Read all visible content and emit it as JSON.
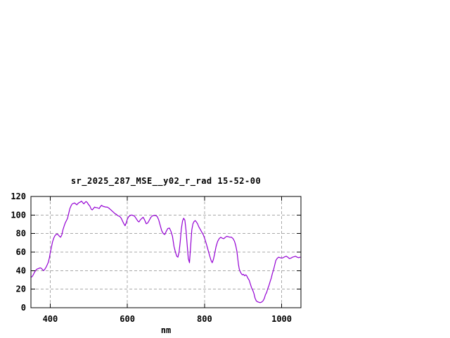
{
  "figure": {
    "background": "#ffffff"
  },
  "chart_data": {
    "type": "line",
    "title": "sr_2025_287_MSE__y02_r_rad 15-52-00",
    "xlabel": "nm",
    "ylabel": "",
    "xlim": [
      350,
      1050
    ],
    "ylim": [
      0,
      120
    ],
    "xtick_values": [
      400,
      600,
      800,
      1000
    ],
    "xtick_labels": [
      "400",
      "600",
      "800",
      "1000"
    ],
    "ytick_values": [
      0,
      20,
      40,
      60,
      80,
      100,
      120
    ],
    "ytick_labels": [
      "0",
      "20",
      "40",
      "60",
      "80",
      "100",
      "120"
    ],
    "grid": true,
    "legend_position": "none",
    "line_color": "#9400d3",
    "grid_color": "#a8a8a8",
    "axis_color": "#000000",
    "series": [
      {
        "name": "sr_2025_287_MSE__y02_r_rad 15-52-00",
        "x": [
          350,
          353,
          356,
          359,
          362,
          365,
          368,
          371,
          374,
          377,
          380,
          383,
          386,
          389,
          392,
          395,
          398,
          400,
          403,
          406,
          409,
          412,
          415,
          418,
          421,
          424,
          427,
          430,
          433,
          436,
          439,
          442,
          445,
          448,
          451,
          454,
          457,
          460,
          463,
          466,
          469,
          472,
          475,
          478,
          481,
          484,
          487,
          490,
          493,
          496,
          499,
          503,
          506,
          509,
          512,
          515,
          518,
          521,
          524,
          527,
          530,
          533,
          536,
          540,
          544,
          548,
          552,
          556,
          560,
          564,
          568,
          572,
          576,
          580,
          584,
          588,
          591,
          594,
          597,
          600,
          603,
          607,
          611,
          615,
          619,
          623,
          627,
          630,
          634,
          638,
          641,
          645,
          649,
          653,
          657,
          661,
          665,
          669,
          673,
          677,
          681,
          685,
          689,
          693,
          697,
          701,
          705,
          709,
          713,
          717,
          721,
          725,
          728,
          731,
          734,
          737,
          740,
          743,
          746,
          749,
          752,
          755,
          758,
          761,
          764,
          767,
          770,
          773,
          776,
          779,
          782,
          785,
          789,
          793,
          797,
          801,
          805,
          809,
          813,
          817,
          820,
          823,
          826,
          830,
          834,
          838,
          842,
          846,
          850,
          854,
          858,
          862,
          866,
          870,
          874,
          878,
          881,
          884,
          886,
          888,
          890,
          892,
          895,
          898,
          901,
          904,
          907,
          910,
          913,
          916,
          919,
          922,
          925,
          928,
          931,
          934,
          937,
          940,
          944,
          948,
          952,
          955,
          958,
          961,
          964,
          967,
          970,
          973,
          976,
          979,
          982,
          985,
          988,
          992,
          996,
          1000,
          1004,
          1008,
          1012,
          1016,
          1020,
          1024,
          1028,
          1032,
          1036,
          1040,
          1044,
          1048
        ],
        "y": [
          33,
          33.5,
          35.5,
          38,
          40,
          41.5,
          42,
          42.5,
          43,
          42.5,
          41,
          40,
          41.5,
          43.5,
          46,
          49,
          54,
          59,
          65,
          71,
          75,
          77.5,
          79,
          79.5,
          78.5,
          77,
          76,
          78.5,
          84,
          88,
          91.5,
          94,
          96.5,
          102,
          107,
          110,
          112,
          112.5,
          113,
          112,
          111,
          112.5,
          113.5,
          114,
          115,
          113.5,
          112,
          113.5,
          114.5,
          113.5,
          111.5,
          109.5,
          106.5,
          105.5,
          107,
          108.5,
          108,
          108,
          107.5,
          107,
          109,
          110.5,
          109.5,
          109,
          108.5,
          108.5,
          107.5,
          106,
          104.5,
          103,
          101.5,
          100.5,
          99,
          98.5,
          96.5,
          93,
          90.5,
          88.5,
          91.5,
          95.5,
          98,
          99.5,
          100,
          99.5,
          98.5,
          96,
          93.5,
          92.5,
          95,
          96.5,
          97.5,
          94.5,
          90.5,
          91.5,
          94.5,
          97.5,
          99,
          99.5,
          99.5,
          98.5,
          95,
          89,
          83,
          80,
          79,
          82.5,
          85.5,
          86,
          82.5,
          77,
          66,
          59.5,
          55.5,
          54.5,
          60,
          71,
          85,
          93.5,
          96.5,
          94.5,
          84,
          68,
          53,
          48.5,
          66,
          84,
          90.5,
          93,
          94,
          92.5,
          90.5,
          87.5,
          84.5,
          81.5,
          78.5,
          74,
          68.5,
          62.5,
          56.5,
          51,
          48.5,
          52,
          57.5,
          66,
          71.5,
          74.5,
          76,
          75,
          74.5,
          76,
          77,
          76.5,
          76,
          76,
          74.5,
          71.5,
          67,
          61,
          54,
          47,
          42,
          39.5,
          37,
          35.5,
          36,
          34.5,
          35.5,
          34,
          31.5,
          29.5,
          25.5,
          21.5,
          19,
          15.5,
          10.5,
          7.5,
          6.5,
          6,
          5.5,
          6,
          7.5,
          10,
          14,
          16.5,
          20.5,
          24,
          28,
          32,
          37,
          41,
          46,
          51,
          53,
          54.5,
          54,
          53.5,
          54,
          55,
          55.5,
          54.5,
          53,
          53.5,
          54.5,
          55,
          55.5,
          54.5,
          54,
          54.5
        ]
      }
    ]
  }
}
